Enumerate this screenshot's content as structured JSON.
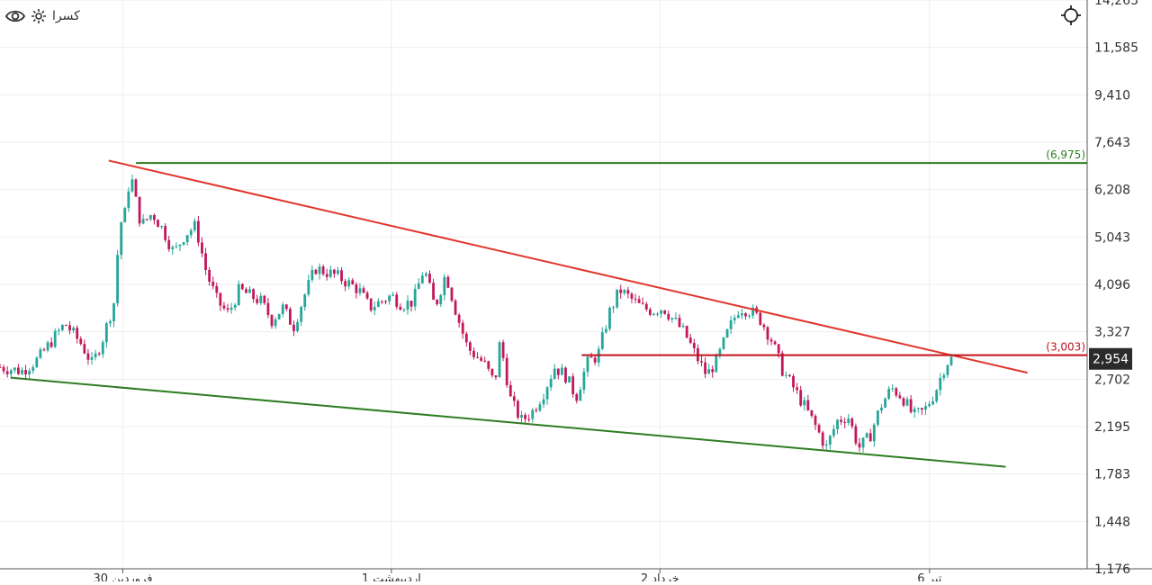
{
  "symbol": "کسرا",
  "chart_data": {
    "type": "candlestick",
    "scale": "log",
    "ylim": [
      1176,
      14263
    ],
    "y_ticks": [
      "14,263",
      "11,585",
      "9,410",
      "7,643",
      "6,208",
      "5,043",
      "4,096",
      "3,327",
      "2,702",
      "2,195",
      "1,783",
      "1,448",
      "1,176"
    ],
    "y_tick_values": [
      14263,
      11585,
      9410,
      7643,
      6208,
      5043,
      4096,
      3327,
      2702,
      2195,
      1783,
      1448,
      1176
    ],
    "x_ticks": [
      "30 فروردین",
      "1 اردیبهشت",
      "2 خرداد",
      "6 تیر"
    ],
    "x_tick_fractions": [
      0.113,
      0.36,
      0.607,
      0.855
    ],
    "last_price": 2954,
    "last_price_label": "2,954",
    "grid": true,
    "price_path": [
      [
        0.0,
        2850
      ],
      [
        0.02,
        2800
      ],
      [
        0.035,
        2950
      ],
      [
        0.05,
        3250
      ],
      [
        0.06,
        3450
      ],
      [
        0.075,
        3150
      ],
      [
        0.085,
        2880
      ],
      [
        0.095,
        3250
      ],
      [
        0.105,
        3800
      ],
      [
        0.11,
        5300
      ],
      [
        0.115,
        5600
      ],
      [
        0.12,
        6700
      ],
      [
        0.125,
        5900
      ],
      [
        0.13,
        5300
      ],
      [
        0.14,
        5600
      ],
      [
        0.15,
        5200
      ],
      [
        0.16,
        4700
      ],
      [
        0.17,
        5100
      ],
      [
        0.18,
        5300
      ],
      [
        0.19,
        4300
      ],
      [
        0.2,
        3800
      ],
      [
        0.21,
        3600
      ],
      [
        0.22,
        4000
      ],
      [
        0.23,
        3900
      ],
      [
        0.24,
        3800
      ],
      [
        0.25,
        3500
      ],
      [
        0.26,
        3700
      ],
      [
        0.27,
        3400
      ],
      [
        0.28,
        3900
      ],
      [
        0.29,
        4400
      ],
      [
        0.31,
        4250
      ],
      [
        0.33,
        4000
      ],
      [
        0.34,
        3700
      ],
      [
        0.36,
        3900
      ],
      [
        0.37,
        3750
      ],
      [
        0.38,
        3800
      ],
      [
        0.39,
        4400
      ],
      [
        0.4,
        3700
      ],
      [
        0.41,
        4300
      ],
      [
        0.42,
        3600
      ],
      [
        0.43,
        3100
      ],
      [
        0.445,
        2900
      ],
      [
        0.455,
        2650
      ],
      [
        0.46,
        3200
      ],
      [
        0.47,
        2450
      ],
      [
        0.48,
        2250
      ],
      [
        0.49,
        2350
      ],
      [
        0.5,
        2550
      ],
      [
        0.51,
        2850
      ],
      [
        0.52,
        2750
      ],
      [
        0.53,
        2500
      ],
      [
        0.54,
        2900
      ],
      [
        0.55,
        3000
      ],
      [
        0.56,
        3600
      ],
      [
        0.57,
        4000
      ],
      [
        0.58,
        3850
      ],
      [
        0.59,
        3700
      ],
      [
        0.6,
        3650
      ],
      [
        0.61,
        3700
      ],
      [
        0.62,
        3500
      ],
      [
        0.63,
        3300
      ],
      [
        0.64,
        3000
      ],
      [
        0.65,
        2750
      ],
      [
        0.66,
        2950
      ],
      [
        0.67,
        3350
      ],
      [
        0.68,
        3700
      ],
      [
        0.69,
        3650
      ],
      [
        0.7,
        3500
      ],
      [
        0.71,
        3200
      ],
      [
        0.72,
        2800
      ],
      [
        0.73,
        2600
      ],
      [
        0.74,
        2400
      ],
      [
        0.75,
        2200
      ],
      [
        0.76,
        2000
      ],
      [
        0.77,
        2250
      ],
      [
        0.78,
        2300
      ],
      [
        0.79,
        2000
      ],
      [
        0.8,
        2100
      ],
      [
        0.81,
        2400
      ],
      [
        0.82,
        2600
      ],
      [
        0.83,
        2500
      ],
      [
        0.84,
        2300
      ],
      [
        0.85,
        2350
      ],
      [
        0.86,
        2550
      ],
      [
        0.87,
        2900
      ],
      [
        0.875,
        2954
      ]
    ],
    "lines": [
      {
        "color": "#e0362c",
        "points": [
          [
            0.1,
            7050
          ],
          [
            0.945,
            2780
          ]
        ]
      },
      {
        "color": "#2e7d22",
        "points": [
          [
            0.01,
            2720
          ],
          [
            0.925,
            1840
          ]
        ]
      },
      {
        "color": "#2e7d22",
        "points": [
          [
            0.125,
            6975
          ],
          [
            1.0,
            6975
          ]
        ],
        "label": "(6,975)"
      },
      {
        "color": "#c1121f",
        "points": [
          [
            0.535,
            3003
          ],
          [
            1.0,
            3003
          ]
        ],
        "label": "(3,003)"
      }
    ],
    "colors": {
      "up": "#26a69a",
      "down": "#c2185b",
      "grid": "#eeeeee",
      "axis_text": "#333333",
      "price_badge": "#2b2b2b"
    }
  }
}
